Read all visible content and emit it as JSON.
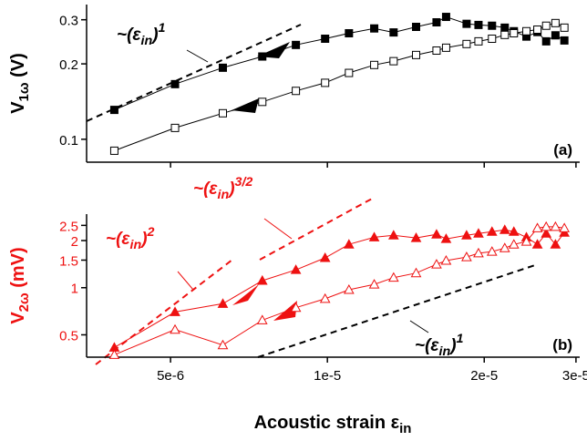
{
  "chart_data": [
    {
      "type": "line",
      "panel_label": "(a)",
      "xscale": "log",
      "yscale": "log",
      "ylabel": {
        "main": "V",
        "sub": "1ω",
        "unit": " (V)"
      },
      "xlim": [
        3.45e-06,
        3.05e-05
      ],
      "xticks": [
        5e-06,
        1e-05,
        2e-05,
        3e-05
      ],
      "ylim": [
        0.081,
        0.345
      ],
      "yticks": [
        0.1,
        0.2,
        0.3
      ],
      "x": [
        3.9e-06,
        5.1e-06,
        6.3e-06,
        7.5e-06,
        8.7e-06,
        9.9e-06,
        1.1e-05,
        1.23e-05,
        1.34e-05,
        1.48e-05,
        1.62e-05,
        1.69e-05,
        1.85e-05,
        1.95e-05,
        2.07e-05,
        2.19e-05,
        2.28e-05,
        2.41e-05,
        2.53e-05,
        2.63e-05,
        2.74e-05,
        2.85e-05
      ],
      "series": [
        {
          "color": "#000000",
          "marker": "square",
          "filled": true,
          "values": [
            0.131,
            0.166,
            0.193,
            0.214,
            0.238,
            0.252,
            0.265,
            0.277,
            0.267,
            0.281,
            0.293,
            0.308,
            0.289,
            0.286,
            0.284,
            0.279,
            0.27,
            0.257,
            0.268,
            0.246,
            0.26,
            0.248
          ]
        },
        {
          "color": "#000000",
          "marker": "square",
          "filled": false,
          "values": [
            0.09,
            0.111,
            0.127,
            0.141,
            0.156,
            0.168,
            0.184,
            0.198,
            0.205,
            0.217,
            0.226,
            0.232,
            0.24,
            0.246,
            0.252,
            0.261,
            0.265,
            0.27,
            0.274,
            0.284,
            0.291,
            0.279
          ]
        }
      ],
      "annotations": [
        {
          "base": "~(ε",
          "sub": "in",
          "close": ")",
          "sup": "1"
        }
      ]
    },
    {
      "type": "line",
      "panel_label": "(b)",
      "xscale": "log",
      "yscale": "log",
      "ylabel": {
        "main": "V",
        "sub": "2ω",
        "unit": " (mV)"
      },
      "xlabel": {
        "main": "Acoustic strain ε",
        "sub": "in"
      },
      "xlim": [
        3.45e-06,
        3.05e-05
      ],
      "xticks": [
        {
          "value": 5e-06,
          "label": "5e-6"
        },
        {
          "value": 1e-05,
          "label": "1e-5"
        },
        {
          "value": 2e-05,
          "label": "2e-5"
        },
        {
          "value": 3e-05,
          "label": "3e-5"
        }
      ],
      "ylim": [
        0.36,
        2.95
      ],
      "yticks": [
        0.5,
        1,
        1.5,
        2,
        2.5
      ],
      "x": [
        3.9e-06,
        5.1e-06,
        6.3e-06,
        7.5e-06,
        8.7e-06,
        9.9e-06,
        1.1e-05,
        1.23e-05,
        1.34e-05,
        1.48e-05,
        1.62e-05,
        1.69e-05,
        1.85e-05,
        1.95e-05,
        2.07e-05,
        2.19e-05,
        2.28e-05,
        2.41e-05,
        2.53e-05,
        2.63e-05,
        2.74e-05,
        2.85e-05
      ],
      "series": [
        {
          "color": "#ee1111",
          "marker": "triangle",
          "filled": true,
          "values": [
            0.415,
            0.7,
            0.79,
            1.11,
            1.3,
            1.55,
            1.89,
            2.1,
            2.16,
            2.08,
            2.19,
            2.05,
            2.16,
            2.22,
            2.28,
            2.34,
            2.28,
            2.1,
            1.89,
            2.22,
            1.89,
            2.25
          ]
        },
        {
          "color": "#ee1111",
          "marker": "triangle",
          "filled": false,
          "values": [
            0.373,
            0.54,
            0.43,
            0.62,
            0.745,
            0.85,
            0.97,
            1.05,
            1.16,
            1.24,
            1.41,
            1.49,
            1.57,
            1.66,
            1.7,
            1.79,
            1.89,
            1.97,
            2.4,
            2.45,
            2.45,
            2.4
          ]
        }
      ],
      "annotations": [
        {
          "base": "~(ε",
          "sub": "in",
          "close": ")",
          "sup": "3/2"
        },
        {
          "base": "~(ε",
          "sub": "in",
          "close": ")",
          "sup": "2"
        },
        {
          "base": "~(ε",
          "sub": "in",
          "close": ")",
          "sup": "1"
        }
      ]
    }
  ]
}
